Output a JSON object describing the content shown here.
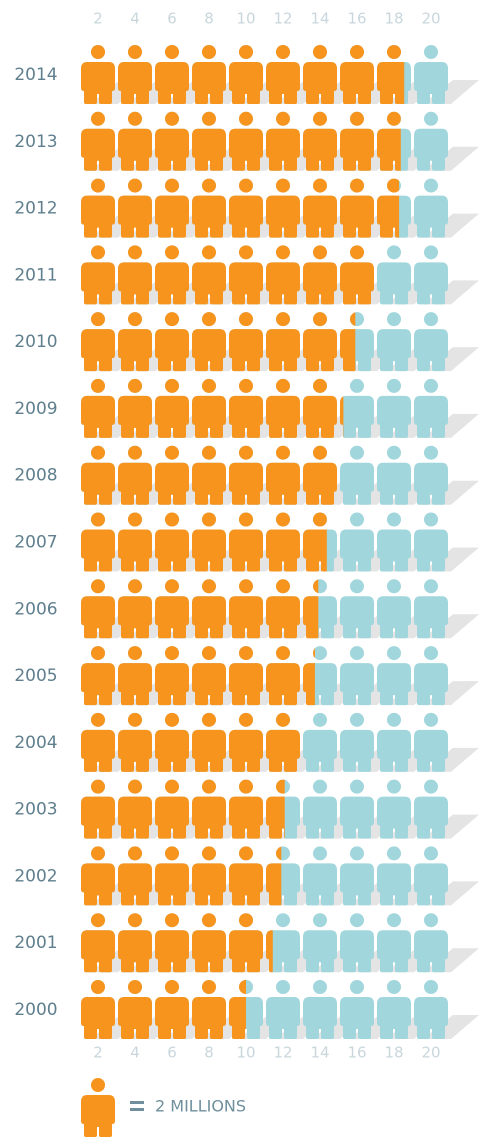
{
  "chart_data": {
    "type": "pictogram",
    "categories": [
      "2014",
      "2013",
      "2012",
      "2011",
      "2010",
      "2009",
      "2008",
      "2007",
      "2006",
      "2005",
      "2004",
      "2003",
      "2002",
      "2001",
      "2000"
    ],
    "values": [
      17.6,
      17.4,
      17.3,
      16,
      14.9,
      14.2,
      14,
      13.4,
      12.9,
      12.7,
      12,
      11.1,
      10.9,
      10.4,
      9.0
    ],
    "xlim": [
      0,
      20
    ],
    "xticks": [
      2,
      4,
      6,
      8,
      10,
      12,
      14,
      16,
      18,
      20
    ],
    "icon_value": 2,
    "icon_label": "2 MILLIONS",
    "color": "#f7941d",
    "empty_color": "#a0d6dc"
  }
}
